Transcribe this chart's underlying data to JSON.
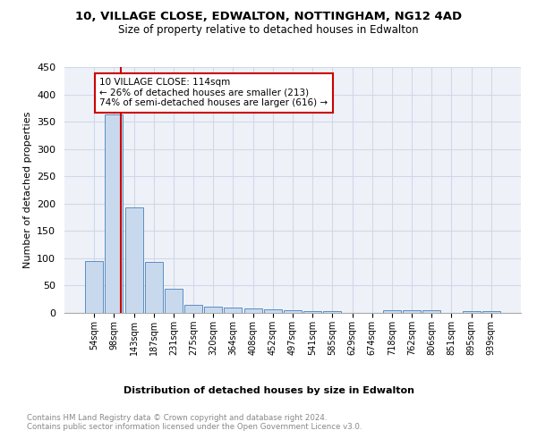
{
  "title_line1": "10, VILLAGE CLOSE, EDWALTON, NOTTINGHAM, NG12 4AD",
  "title_line2": "Size of property relative to detached houses in Edwalton",
  "xlabel": "Distribution of detached houses by size in Edwalton",
  "ylabel": "Number of detached properties",
  "footer": "Contains HM Land Registry data © Crown copyright and database right 2024.\nContains public sector information licensed under the Open Government Licence v3.0.",
  "categories": [
    "54sqm",
    "98sqm",
    "143sqm",
    "187sqm",
    "231sqm",
    "275sqm",
    "320sqm",
    "364sqm",
    "408sqm",
    "452sqm",
    "497sqm",
    "541sqm",
    "585sqm",
    "629sqm",
    "674sqm",
    "718sqm",
    "762sqm",
    "806sqm",
    "851sqm",
    "895sqm",
    "939sqm"
  ],
  "values": [
    95,
    363,
    193,
    93,
    45,
    15,
    12,
    10,
    8,
    6,
    5,
    3,
    3,
    0,
    0,
    5,
    5,
    5,
    0,
    4,
    4
  ],
  "bar_color": "#c9d9ed",
  "bar_edge_color": "#5a8fc2",
  "grid_color": "#d0d8e8",
  "background_color": "#eef2f8",
  "vline_x": 1.35,
  "vline_color": "#cc0000",
  "annotation_text": "10 VILLAGE CLOSE: 114sqm\n← 26% of detached houses are smaller (213)\n74% of semi-detached houses are larger (616) →",
  "annotation_box_color": "white",
  "annotation_box_edge": "#cc0000",
  "ylim": [
    0,
    450
  ],
  "yticks": [
    0,
    50,
    100,
    150,
    200,
    250,
    300,
    350,
    400,
    450
  ]
}
